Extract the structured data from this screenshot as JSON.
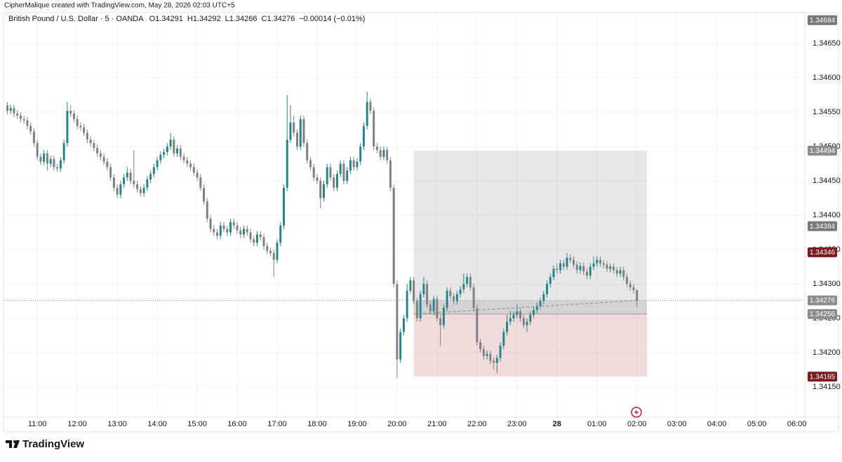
{
  "signature": "CipherMalique created with TradingView.com, May 28, 2026 02:03 UTC+5",
  "brand": "TradingView",
  "chart_data": {
    "type": "candlestick",
    "title": "British Pound / U.S. Dollar · 5 · OANDA",
    "readout": [
      "O1.34291",
      "H1.34292",
      "L1.34266",
      "C1.34276",
      "−0.00014 (−0.01%)"
    ],
    "up_color": "#26858c",
    "down_color": "#808080",
    "grid": true,
    "xlim": [
      604,
      1812
    ],
    "ylim": [
      1.34106,
      1.34695
    ],
    "xticks": [
      {
        "value": 660,
        "label": "11:00"
      },
      {
        "value": 720,
        "label": "12:00"
      },
      {
        "value": 780,
        "label": "13:00"
      },
      {
        "value": 840,
        "label": "14:00"
      },
      {
        "value": 900,
        "label": "15:00"
      },
      {
        "value": 960,
        "label": "16:00"
      },
      {
        "value": 1020,
        "label": "17:00"
      },
      {
        "value": 1080,
        "label": "18:00"
      },
      {
        "value": 1140,
        "label": "19:00"
      },
      {
        "value": 1200,
        "label": "20:00"
      },
      {
        "value": 1260,
        "label": "21:00"
      },
      {
        "value": 1320,
        "label": "22:00"
      },
      {
        "value": 1380,
        "label": "23:00"
      },
      {
        "value": 1440,
        "label": "28",
        "bold": true
      },
      {
        "value": 1500,
        "label": "01:00"
      },
      {
        "value": 1560,
        "label": "02:00"
      },
      {
        "value": 1620,
        "label": "03:00"
      },
      {
        "value": 1680,
        "label": "04:00"
      },
      {
        "value": 1740,
        "label": "05:00"
      },
      {
        "value": 1800,
        "label": "06:00"
      }
    ],
    "yticks": [
      {
        "value": 1.3465,
        "label": "1.34650"
      },
      {
        "value": 1.346,
        "label": "1.34600"
      },
      {
        "value": 1.3455,
        "label": "1.34550"
      },
      {
        "value": 1.345,
        "label": "1.34500"
      },
      {
        "value": 1.3445,
        "label": "1.34450"
      },
      {
        "value": 1.344,
        "label": "1.34400"
      },
      {
        "value": 1.3435,
        "label": "1.34350"
      },
      {
        "value": 1.343,
        "label": "1.34300"
      },
      {
        "value": 1.3425,
        "label": "1.34250"
      },
      {
        "value": 1.342,
        "label": "1.34200"
      },
      {
        "value": 1.3415,
        "label": "1.34150"
      }
    ],
    "price_labels": [
      {
        "value": 1.34684,
        "color": "#787878"
      },
      {
        "value": 1.34494,
        "color": "#8c8c8c"
      },
      {
        "value": 1.34384,
        "color": "#787878"
      },
      {
        "value": 1.34346,
        "color": "#7a1a1f"
      },
      {
        "value": 1.34276,
        "color": "#8c8c8c"
      },
      {
        "value": 1.34256,
        "color": "#8c8c8c"
      },
      {
        "value": 1.34165,
        "color": "#7a1a1f"
      }
    ],
    "position": {
      "start": 1225,
      "end": 1575,
      "target": 1.34494,
      "entry": 1.34256,
      "stop": 1.34165
    },
    "x": [
      615,
      620,
      625,
      630,
      635,
      640,
      645,
      650,
      655,
      660,
      665,
      670,
      675,
      680,
      685,
      690,
      695,
      700,
      705,
      710,
      715,
      720,
      725,
      730,
      735,
      740,
      745,
      750,
      755,
      760,
      765,
      770,
      775,
      780,
      785,
      790,
      795,
      800,
      805,
      810,
      815,
      820,
      825,
      830,
      835,
      840,
      845,
      850,
      855,
      860,
      865,
      870,
      875,
      880,
      885,
      890,
      895,
      900,
      905,
      910,
      915,
      920,
      925,
      930,
      935,
      940,
      945,
      950,
      955,
      960,
      965,
      970,
      975,
      980,
      985,
      990,
      995,
      1000,
      1005,
      1010,
      1015,
      1020,
      1025,
      1030,
      1035,
      1040,
      1045,
      1050,
      1055,
      1060,
      1065,
      1070,
      1075,
      1080,
      1085,
      1090,
      1095,
      1100,
      1105,
      1110,
      1115,
      1120,
      1125,
      1130,
      1135,
      1140,
      1145,
      1150,
      1155,
      1160,
      1165,
      1170,
      1175,
      1180,
      1185,
      1190,
      1195,
      1200,
      1205,
      1210,
      1215,
      1220,
      1225,
      1230,
      1235,
      1240,
      1245,
      1250,
      1255,
      1260,
      1265,
      1270,
      1275,
      1280,
      1285,
      1290,
      1295,
      1300,
      1305,
      1310,
      1315,
      1320,
      1325,
      1330,
      1335,
      1340,
      1345,
      1350,
      1355,
      1360,
      1365,
      1370,
      1375,
      1380,
      1385,
      1390,
      1395,
      1400,
      1405,
      1410,
      1415,
      1420,
      1425,
      1430,
      1435,
      1440,
      1445,
      1450,
      1455,
      1460,
      1465,
      1470,
      1475,
      1480,
      1485,
      1490,
      1495,
      1500,
      1505,
      1510,
      1515,
      1520,
      1525,
      1530,
      1535,
      1540,
      1545,
      1550,
      1555,
      1560
    ],
    "open": [
      1.3456,
      1.34552,
      1.34556,
      1.34548,
      1.34545,
      1.3454,
      1.34538,
      1.3453,
      1.34522,
      1.34505,
      1.34485,
      1.34478,
      1.3449,
      1.34475,
      1.34482,
      1.3447,
      1.34468,
      1.3448,
      1.34505,
      1.34552,
      1.34548,
      1.3454,
      1.3453,
      1.34528,
      1.3452,
      1.3451,
      1.34505,
      1.34498,
      1.3449,
      1.34485,
      1.34478,
      1.3447,
      1.34455,
      1.3444,
      1.3443,
      1.34445,
      1.34455,
      1.34462,
      1.3445,
      1.34445,
      1.34438,
      1.34432,
      1.3444,
      1.34452,
      1.3446,
      1.3447,
      1.3448,
      1.34488,
      1.34492,
      1.345,
      1.3451,
      1.3449,
      1.34497,
      1.34485,
      1.3448,
      1.34475,
      1.3447,
      1.34462,
      1.34455,
      1.3444,
      1.3442,
      1.34395,
      1.3438,
      1.34375,
      1.3437,
      1.34385,
      1.3438,
      1.34375,
      1.3439,
      1.34385,
      1.34378,
      1.34372,
      1.3438,
      1.34375,
      1.34365,
      1.3436,
      1.34372,
      1.34368,
      1.34355,
      1.34348,
      1.34345,
      1.34335,
      1.3436,
      1.34385,
      1.3444,
      1.3451,
      1.34535,
      1.3452,
      1.345,
      1.3454,
      1.34505,
      1.3448,
      1.3447,
      1.34455,
      1.3445,
      1.34425,
      1.34445,
      1.3447,
      1.34455,
      1.3444,
      1.3446,
      1.34475,
      1.3445,
      1.34465,
      1.3448,
      1.3447,
      1.34478,
      1.345,
      1.3453,
      1.34565,
      1.34552,
      1.345,
      1.34495,
      1.34485,
      1.34495,
      1.3448,
      1.3444,
      1.343,
      1.3419,
      1.3423,
      1.3425,
      1.3429,
      1.34305,
      1.34275,
      1.3425,
      1.34285,
      1.343,
      1.3427,
      1.3426,
      1.34278,
      1.3425,
      1.3424,
      1.34265,
      1.3429,
      1.34282,
      1.34275,
      1.34285,
      1.34292,
      1.343,
      1.3431,
      1.34295,
      1.34265,
      1.34215,
      1.34205,
      1.34195,
      1.34198,
      1.34188,
      1.34185,
      1.34192,
      1.3421,
      1.3423,
      1.34245,
      1.3425,
      1.34255,
      1.3426,
      1.3425,
      1.3424,
      1.34245,
      1.34255,
      1.34262,
      1.34268,
      1.34275,
      1.34285,
      1.343,
      1.3431,
      1.34322,
      1.3432,
      1.3433,
      1.34325,
      1.34338,
      1.34335,
      1.34328,
      1.3432,
      1.34326,
      1.34318,
      1.34312,
      1.34325,
      1.3433,
      1.34335,
      1.3433,
      1.34328,
      1.34322,
      1.34325,
      1.3432,
      1.34315,
      1.3432,
      1.3431,
      1.343,
      1.34295,
      1.34291
    ],
    "high": [
      1.34565,
      1.34561,
      1.34561,
      1.34553,
      1.3455,
      1.34545,
      1.34543,
      1.34535,
      1.34527,
      1.3451,
      1.3449,
      1.34495,
      1.34495,
      1.34487,
      1.34487,
      1.34475,
      1.34485,
      1.3451,
      1.34565,
      1.3456,
      1.34553,
      1.34545,
      1.34535,
      1.34533,
      1.34525,
      1.34515,
      1.3451,
      1.34503,
      1.34495,
      1.3449,
      1.34483,
      1.34475,
      1.3446,
      1.34445,
      1.3445,
      1.3446,
      1.3447,
      1.34467,
      1.34495,
      1.3445,
      1.34443,
      1.34445,
      1.34457,
      1.34465,
      1.34475,
      1.34485,
      1.34493,
      1.34497,
      1.34505,
      1.3452,
      1.34515,
      1.34502,
      1.34502,
      1.3449,
      1.34485,
      1.3448,
      1.34475,
      1.34467,
      1.3446,
      1.34445,
      1.34425,
      1.344,
      1.34385,
      1.3438,
      1.3439,
      1.3439,
      1.34385,
      1.34395,
      1.34395,
      1.3439,
      1.34383,
      1.34385,
      1.34385,
      1.3438,
      1.3437,
      1.34377,
      1.34377,
      1.34373,
      1.3436,
      1.34353,
      1.3435,
      1.34365,
      1.3439,
      1.34445,
      1.34575,
      1.3456,
      1.34545,
      1.34525,
      1.34545,
      1.34545,
      1.3451,
      1.34485,
      1.34475,
      1.3446,
      1.34455,
      1.3445,
      1.34475,
      1.34475,
      1.3446,
      1.34465,
      1.3448,
      1.3448,
      1.3447,
      1.34485,
      1.34485,
      1.34483,
      1.34505,
      1.34535,
      1.3458,
      1.3457,
      1.34557,
      1.34505,
      1.345,
      1.345,
      1.345,
      1.34485,
      1.34445,
      1.34305,
      1.34235,
      1.34255,
      1.343,
      1.3431,
      1.3431,
      1.3428,
      1.3429,
      1.3431,
      1.34305,
      1.34275,
      1.34283,
      1.34283,
      1.34255,
      1.3427,
      1.34295,
      1.34295,
      1.34287,
      1.3429,
      1.34297,
      1.34315,
      1.34315,
      1.34315,
      1.343,
      1.3427,
      1.3422,
      1.3421,
      1.34203,
      1.34203,
      1.34193,
      1.34197,
      1.34215,
      1.34235,
      1.34255,
      1.3426,
      1.3426,
      1.3427,
      1.34265,
      1.34255,
      1.3425,
      1.3426,
      1.34267,
      1.34273,
      1.3428,
      1.3429,
      1.34305,
      1.34315,
      1.34327,
      1.3433,
      1.34335,
      1.34335,
      1.34345,
      1.34343,
      1.3434,
      1.34333,
      1.34331,
      1.34331,
      1.34323,
      1.3433,
      1.3434,
      1.3434,
      1.3434,
      1.34335,
      1.34333,
      1.3433,
      1.3433,
      1.34325,
      1.34325,
      1.34325,
      1.34315,
      1.34305,
      1.343,
      1.34292
    ],
    "low": [
      1.34547,
      1.34547,
      1.34543,
      1.3454,
      1.34535,
      1.34533,
      1.34525,
      1.34517,
      1.345,
      1.3448,
      1.34473,
      1.34473,
      1.34465,
      1.3447,
      1.34465,
      1.34463,
      1.34463,
      1.34475,
      1.345,
      1.34543,
      1.34535,
      1.34525,
      1.34523,
      1.34515,
      1.34505,
      1.345,
      1.34493,
      1.34485,
      1.3448,
      1.34473,
      1.34465,
      1.3445,
      1.34435,
      1.34425,
      1.34425,
      1.3444,
      1.3445,
      1.34445,
      1.3444,
      1.34433,
      1.34427,
      1.34427,
      1.34435,
      1.34447,
      1.34455,
      1.34465,
      1.34475,
      1.34483,
      1.34487,
      1.34495,
      1.34485,
      1.34485,
      1.3448,
      1.34475,
      1.3447,
      1.34465,
      1.34457,
      1.3445,
      1.34435,
      1.34415,
      1.3439,
      1.34375,
      1.3437,
      1.34365,
      1.34365,
      1.34375,
      1.3437,
      1.3437,
      1.3438,
      1.34373,
      1.34367,
      1.34367,
      1.3437,
      1.3436,
      1.34355,
      1.34355,
      1.34363,
      1.3435,
      1.34343,
      1.3434,
      1.3431,
      1.3433,
      1.34355,
      1.3438,
      1.34435,
      1.34505,
      1.34515,
      1.34495,
      1.34495,
      1.345,
      1.34475,
      1.34465,
      1.3445,
      1.34445,
      1.3441,
      1.3442,
      1.3444,
      1.3445,
      1.34435,
      1.34435,
      1.34455,
      1.34445,
      1.34445,
      1.3446,
      1.34465,
      1.34465,
      1.34473,
      1.34495,
      1.34525,
      1.34547,
      1.34495,
      1.3449,
      1.3448,
      1.3448,
      1.34475,
      1.34435,
      1.34295,
      1.34163,
      1.34185,
      1.34225,
      1.34245,
      1.34285,
      1.3427,
      1.34245,
      1.34245,
      1.3428,
      1.34265,
      1.34255,
      1.34255,
      1.34245,
      1.3421,
      1.34235,
      1.3426,
      1.34277,
      1.3427,
      1.3427,
      1.3428,
      1.34287,
      1.34295,
      1.3429,
      1.3426,
      1.3421,
      1.342,
      1.3419,
      1.3419,
      1.34183,
      1.34175,
      1.3417,
      1.34187,
      1.34205,
      1.34225,
      1.3424,
      1.34245,
      1.3425,
      1.34245,
      1.34235,
      1.3423,
      1.3424,
      1.3425,
      1.34257,
      1.34263,
      1.3427,
      1.3428,
      1.34295,
      1.34305,
      1.34315,
      1.34315,
      1.3432,
      1.3432,
      1.3433,
      1.34323,
      1.34315,
      1.34315,
      1.34313,
      1.34307,
      1.34307,
      1.3432,
      1.34325,
      1.34325,
      1.34323,
      1.34317,
      1.34317,
      1.34315,
      1.3431,
      1.3431,
      1.34305,
      1.34295,
      1.3429,
      1.34286,
      1.34266
    ],
    "close": [
      1.34552,
      1.34556,
      1.34548,
      1.34545,
      1.3454,
      1.34538,
      1.3453,
      1.34522,
      1.34505,
      1.34485,
      1.34478,
      1.3449,
      1.34475,
      1.34482,
      1.3447,
      1.34468,
      1.3448,
      1.34505,
      1.34552,
      1.34548,
      1.3454,
      1.3453,
      1.34528,
      1.3452,
      1.3451,
      1.34505,
      1.34498,
      1.3449,
      1.34485,
      1.34478,
      1.3447,
      1.34455,
      1.3444,
      1.3443,
      1.34445,
      1.34455,
      1.34462,
      1.3445,
      1.34445,
      1.34438,
      1.34432,
      1.3444,
      1.34452,
      1.3446,
      1.3447,
      1.3448,
      1.34488,
      1.34492,
      1.345,
      1.3451,
      1.3449,
      1.34497,
      1.34485,
      1.3448,
      1.34475,
      1.3447,
      1.34462,
      1.34455,
      1.3444,
      1.3442,
      1.34395,
      1.3438,
      1.34375,
      1.3437,
      1.34385,
      1.3438,
      1.34375,
      1.3439,
      1.34385,
      1.34378,
      1.34372,
      1.3438,
      1.34375,
      1.34365,
      1.3436,
      1.34372,
      1.34368,
      1.34355,
      1.34348,
      1.34345,
      1.34335,
      1.3436,
      1.34385,
      1.3444,
      1.3451,
      1.34535,
      1.3452,
      1.345,
      1.3454,
      1.34505,
      1.3448,
      1.3447,
      1.34455,
      1.3445,
      1.34425,
      1.34445,
      1.3447,
      1.34455,
      1.3444,
      1.3446,
      1.34475,
      1.3445,
      1.34465,
      1.3448,
      1.3447,
      1.34478,
      1.345,
      1.3453,
      1.34565,
      1.34552,
      1.345,
      1.34495,
      1.34485,
      1.34495,
      1.3448,
      1.3444,
      1.343,
      1.3419,
      1.3423,
      1.3425,
      1.3429,
      1.34305,
      1.34275,
      1.3425,
      1.34285,
      1.343,
      1.3427,
      1.3426,
      1.34278,
      1.3425,
      1.3424,
      1.34265,
      1.3429,
      1.34282,
      1.34275,
      1.34285,
      1.34292,
      1.343,
      1.3431,
      1.34295,
      1.34265,
      1.34215,
      1.34205,
      1.34195,
      1.34198,
      1.34188,
      1.34185,
      1.34192,
      1.3421,
      1.3423,
      1.34245,
      1.3425,
      1.34255,
      1.3426,
      1.3425,
      1.3424,
      1.34245,
      1.34255,
      1.34262,
      1.34268,
      1.34275,
      1.34285,
      1.343,
      1.3431,
      1.34322,
      1.3432,
      1.3433,
      1.34325,
      1.34338,
      1.34335,
      1.34328,
      1.3432,
      1.34326,
      1.34318,
      1.34312,
      1.34325,
      1.3433,
      1.34335,
      1.3433,
      1.34328,
      1.34322,
      1.34325,
      1.3432,
      1.34315,
      1.3432,
      1.3431,
      1.343,
      1.34295,
      1.34291,
      1.34276
    ]
  }
}
